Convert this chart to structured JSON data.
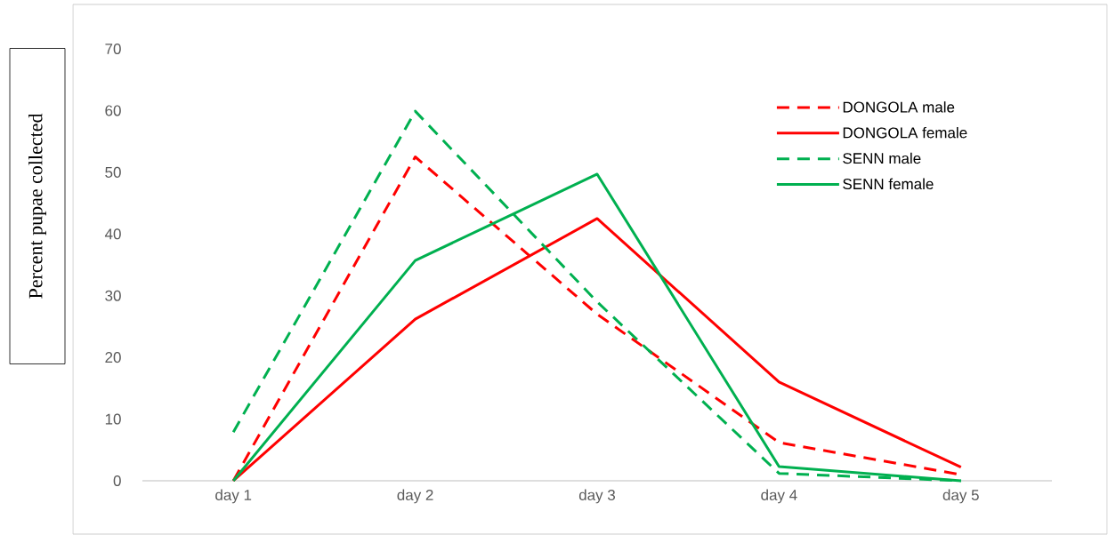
{
  "chart_data": {
    "type": "line",
    "ylabel": "Percent pupae collected",
    "categories": [
      "day 1",
      "day 2",
      "day 3",
      "day 4",
      "day 5"
    ],
    "ylim": [
      0,
      70
    ],
    "yticks": [
      0,
      10,
      20,
      30,
      40,
      50,
      60,
      70
    ],
    "legend": "top right",
    "marker": "none",
    "series": [
      {
        "name": "DONGOLA male",
        "color": "#ff0000",
        "line_style": "dashed",
        "values": [
          0,
          52.5,
          27,
          6.2,
          1
        ]
      },
      {
        "name": "DONGOLA female",
        "color": "#ff0000",
        "line_style": "solid",
        "values": [
          0,
          26.2,
          42.5,
          16,
          2.2
        ]
      },
      {
        "name": "SENN male",
        "color": "#00b050",
        "line_style": "dashed",
        "values": [
          7.9,
          59.9,
          29,
          1.2,
          0
        ]
      },
      {
        "name": "SENN female",
        "color": "#00b050",
        "line_style": "solid",
        "values": [
          0,
          35.7,
          49.7,
          2.3,
          0
        ]
      }
    ]
  }
}
